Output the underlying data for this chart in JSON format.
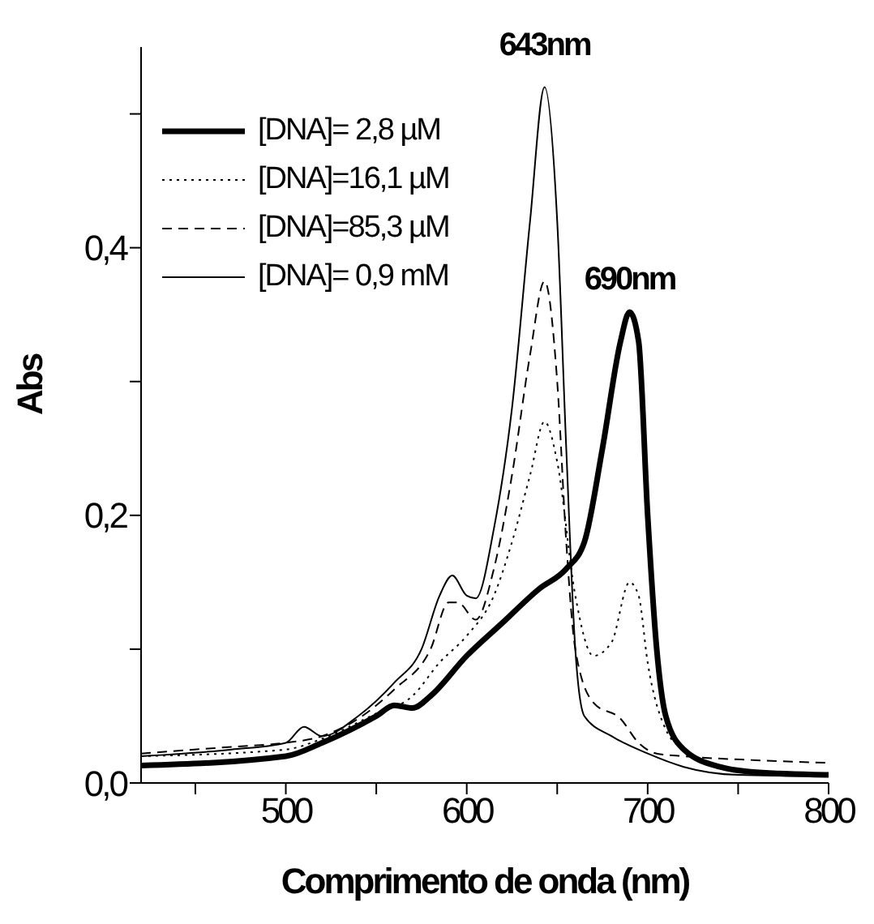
{
  "chart_data": {
    "type": "line",
    "xlabel": "Comprimento de onda (nm)",
    "ylabel": "Abs",
    "xlim": [
      420,
      800
    ],
    "xticks": [
      {
        "value": 450,
        "label": null
      },
      500,
      {
        "value": 550,
        "label": null
      },
      600,
      {
        "value": 650,
        "label": null
      },
      700,
      {
        "value": 750,
        "label": null
      },
      800
    ],
    "ylim": [
      0,
      0.55
    ],
    "yticks": [
      {
        "value": 0,
        "label": "0,0"
      },
      {
        "value": 0.1,
        "label": null
      },
      {
        "value": 0.2,
        "label": "0,2"
      },
      {
        "value": 0.3,
        "label": null
      },
      {
        "value": 0.4,
        "label": "0,4"
      },
      {
        "value": 0.5,
        "label": null
      }
    ],
    "legend": "top left",
    "grid": false,
    "marker": "none",
    "annotations": [
      {
        "text": "643nm",
        "x": 643,
        "y": 0.52
      },
      {
        "text": "690nm",
        "x": 690,
        "y": 0.352
      }
    ],
    "series": [
      {
        "name": "[DNA]= 2,8 µM",
        "color": "#000000",
        "line_style": "solid",
        "x": [
          420,
          500,
          520,
          550,
          560,
          570,
          580,
          600,
          620,
          640,
          655,
          665,
          675,
          685,
          690,
          695,
          700,
          705,
          710,
          720,
          740,
          760,
          800
        ],
        "values": [
          0.013,
          0.02,
          0.03,
          0.05,
          0.058,
          0.056,
          0.065,
          0.095,
          0.12,
          0.145,
          0.16,
          0.18,
          0.25,
          0.33,
          0.352,
          0.33,
          0.2,
          0.1,
          0.05,
          0.025,
          0.012,
          0.008,
          0.006
        ]
      },
      {
        "name": "[DNA]=16,1 µM",
        "color": "#000000",
        "line_style": "dotted",
        "x": [
          420,
          500,
          520,
          550,
          570,
          585,
          600,
          615,
          625,
          635,
          643,
          650,
          660,
          670,
          680,
          690,
          695,
          700,
          710,
          720,
          750,
          800
        ],
        "values": [
          0.02,
          0.025,
          0.033,
          0.052,
          0.065,
          0.09,
          0.11,
          0.14,
          0.18,
          0.23,
          0.27,
          0.24,
          0.14,
          0.095,
          0.105,
          0.15,
          0.14,
          0.09,
          0.04,
          0.025,
          0.01,
          0.006
        ]
      },
      {
        "name": "[DNA]=85,3 µM",
        "color": "#000000",
        "line_style": "dashed",
        "x": [
          420,
          470,
          500,
          520,
          540,
          560,
          580,
          590,
          595,
          605,
          615,
          625,
          635,
          643,
          650,
          655,
          660,
          670,
          685,
          695,
          705,
          720,
          760,
          800
        ],
        "values": [
          0.022,
          0.027,
          0.03,
          0.035,
          0.048,
          0.07,
          0.1,
          0.135,
          0.135,
          0.122,
          0.16,
          0.23,
          0.32,
          0.375,
          0.3,
          0.18,
          0.1,
          0.06,
          0.048,
          0.03,
          0.022,
          0.02,
          0.017,
          0.015
        ]
      },
      {
        "name": "[DNA]= 0,9 mM",
        "color": "#000000",
        "line_style": "solid",
        "x": [
          420,
          470,
          500,
          510,
          520,
          540,
          560,
          575,
          585,
          592,
          600,
          605,
          615,
          625,
          635,
          643,
          650,
          655,
          660,
          665,
          680,
          700,
          720,
          750,
          800
        ],
        "values": [
          0.02,
          0.025,
          0.03,
          0.042,
          0.035,
          0.05,
          0.075,
          0.1,
          0.14,
          0.155,
          0.14,
          0.138,
          0.19,
          0.28,
          0.42,
          0.52,
          0.42,
          0.25,
          0.1,
          0.05,
          0.035,
          0.022,
          0.012,
          0.006,
          0.005
        ]
      }
    ]
  }
}
